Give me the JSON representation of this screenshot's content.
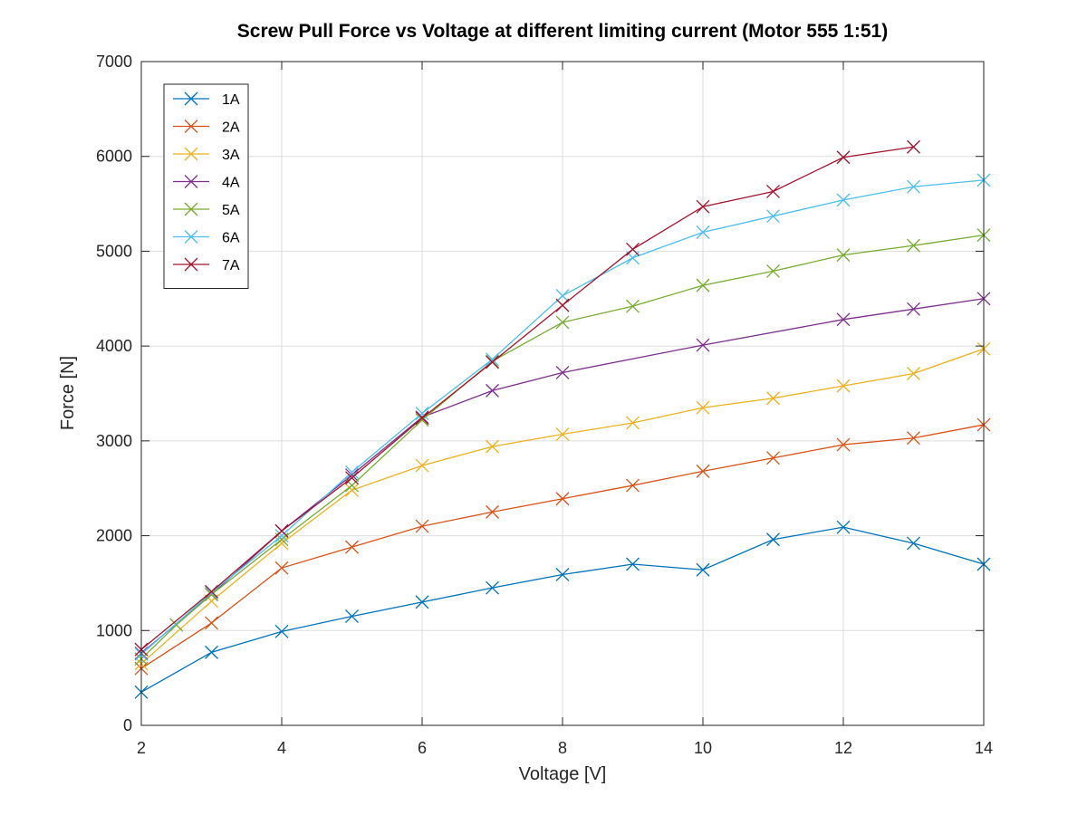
{
  "chart_data": {
    "type": "line",
    "title": "Screw Pull Force vs Voltage at different limiting current (Motor 555 1:51)",
    "xlabel": "Voltage [V]",
    "ylabel": "Force [N]",
    "xlim": [
      2,
      14
    ],
    "ylim": [
      0,
      7000
    ],
    "xticks": [
      2,
      4,
      6,
      8,
      10,
      12,
      14
    ],
    "yticks": [
      0,
      1000,
      2000,
      3000,
      4000,
      5000,
      6000,
      7000
    ],
    "grid": true,
    "legend_position": "top-left",
    "marker": "x",
    "series": [
      {
        "name": "1A",
        "color": "#0072BD",
        "x": [
          2,
          3,
          4,
          5,
          6,
          7,
          8,
          9,
          10,
          11,
          12,
          13,
          14
        ],
        "y": [
          350,
          770,
          990,
          1150,
          1300,
          1450,
          1590,
          1700,
          1640,
          1960,
          2090,
          1920,
          1700
        ]
      },
      {
        "name": "2A",
        "color": "#D95319",
        "x": [
          2,
          3,
          4,
          5,
          6,
          7,
          8,
          9,
          10,
          11,
          12,
          13,
          14
        ],
        "y": [
          600,
          1080,
          1660,
          1880,
          2100,
          2250,
          2390,
          2530,
          2680,
          2820,
          2960,
          3030,
          3170
        ]
      },
      {
        "name": "3A",
        "color": "#EDB120",
        "x": [
          2,
          3,
          4,
          5,
          6,
          7,
          8,
          9,
          10,
          11,
          12,
          13,
          14
        ],
        "y": [
          650,
          1310,
          1920,
          2480,
          2740,
          2940,
          3070,
          3190,
          3350,
          3450,
          3580,
          3710,
          3970
        ]
      },
      {
        "name": "4A",
        "color": "#7E2F8E",
        "x": [
          2,
          3,
          4,
          5,
          6,
          7,
          8,
          10,
          12,
          13,
          14
        ],
        "y": [
          760,
          1380,
          2050,
          2640,
          3250,
          3530,
          3720,
          4010,
          4280,
          4390,
          4500
        ]
      },
      {
        "name": "5A",
        "color": "#77AC30",
        "x": [
          2,
          2.5,
          3,
          4,
          5,
          6,
          7,
          8,
          9,
          10,
          11,
          12,
          13,
          14
        ],
        "y": [
          700,
          1060,
          1380,
          1960,
          2530,
          3220,
          3840,
          4250,
          4420,
          4640,
          4790,
          4960,
          5060,
          5170
        ]
      },
      {
        "name": "6A",
        "color": "#4DBEEE",
        "x": [
          2,
          3,
          4,
          5,
          6,
          7,
          8,
          9,
          10,
          11,
          12,
          13,
          14
        ],
        "y": [
          750,
          1400,
          2000,
          2670,
          3290,
          3860,
          4530,
          4930,
          5200,
          5370,
          5540,
          5680,
          5750
        ]
      },
      {
        "name": "7A",
        "color": "#A2142F",
        "x": [
          2,
          3,
          4,
          5,
          6,
          7,
          8,
          9,
          10,
          11,
          12,
          13
        ],
        "y": [
          800,
          1410,
          2050,
          2610,
          3240,
          3830,
          4430,
          5020,
          5470,
          5630,
          5990,
          6100
        ]
      }
    ]
  }
}
